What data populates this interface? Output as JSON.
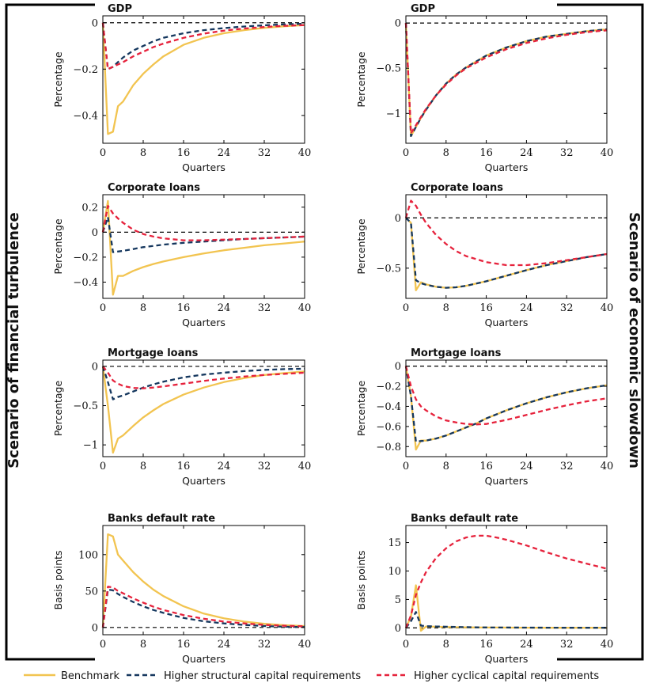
{
  "legend": {
    "items": [
      {
        "label": "Benchmark",
        "color": "#f2c450",
        "dash": "solid"
      },
      {
        "label": "Higher structural capital requirements",
        "color": "#15375e",
        "dash": "dashed"
      },
      {
        "label": "Higher cyclical capital requirements",
        "color": "#e6223c",
        "dash": "dashed"
      }
    ]
  },
  "scenarios": {
    "left": "Scenario of financial turbulence",
    "right": "Scenario of economic slowdown"
  },
  "chart_data": [
    {
      "type": "line",
      "column": "left",
      "row": 0,
      "title": "GDP",
      "xlabel": "Quarters",
      "ylabel": "Percentage",
      "xlim": [
        0,
        40
      ],
      "xticks": [
        0,
        8,
        16,
        24,
        32,
        40
      ],
      "ylim": [
        -0.52,
        0.03
      ],
      "yticks": [
        0,
        -0.2,
        -0.4
      ],
      "ytick_labels": [
        "0",
        "−0.2",
        "−0.4"
      ],
      "zero_line": true,
      "x": [
        0,
        1,
        2,
        3,
        4,
        6,
        8,
        10,
        12,
        16,
        20,
        24,
        28,
        32,
        36,
        40
      ],
      "series": [
        {
          "name": "Benchmark",
          "values": [
            0,
            -0.48,
            -0.47,
            -0.36,
            -0.34,
            -0.27,
            -0.22,
            -0.18,
            -0.145,
            -0.095,
            -0.065,
            -0.045,
            -0.032,
            -0.022,
            -0.015,
            -0.01
          ]
        },
        {
          "name": "Higher structural capital requirements",
          "values": [
            0,
            -0.2,
            -0.19,
            -0.17,
            -0.15,
            -0.12,
            -0.1,
            -0.08,
            -0.065,
            -0.045,
            -0.032,
            -0.023,
            -0.016,
            -0.011,
            -0.007,
            -0.004
          ]
        },
        {
          "name": "Higher cyclical capital requirements",
          "values": [
            0,
            -0.2,
            -0.19,
            -0.18,
            -0.17,
            -0.145,
            -0.125,
            -0.105,
            -0.09,
            -0.065,
            -0.047,
            -0.034,
            -0.025,
            -0.018,
            -0.013,
            -0.01
          ]
        }
      ]
    },
    {
      "type": "line",
      "column": "right",
      "row": 0,
      "title": "GDP",
      "xlabel": "Quarters",
      "ylabel": "Percentage",
      "xlim": [
        0,
        40
      ],
      "xticks": [
        0,
        8,
        16,
        24,
        32,
        40
      ],
      "ylim": [
        -1.33,
        0.08
      ],
      "yticks": [
        0,
        -0.5,
        -1
      ],
      "ytick_labels": [
        "0",
        "−0.5",
        "−1"
      ],
      "zero_line": true,
      "x": [
        0,
        1,
        2,
        3,
        4,
        6,
        8,
        10,
        12,
        16,
        20,
        24,
        28,
        32,
        36,
        40
      ],
      "series": [
        {
          "name": "Benchmark",
          "values": [
            0,
            -1.25,
            -1.15,
            -1.05,
            -0.96,
            -0.8,
            -0.67,
            -0.57,
            -0.49,
            -0.36,
            -0.27,
            -0.2,
            -0.15,
            -0.12,
            -0.09,
            -0.07
          ]
        },
        {
          "name": "Higher structural capital requirements",
          "values": [
            0,
            -1.25,
            -1.15,
            -1.05,
            -0.96,
            -0.8,
            -0.67,
            -0.57,
            -0.49,
            -0.36,
            -0.27,
            -0.2,
            -0.15,
            -0.12,
            -0.09,
            -0.07
          ]
        },
        {
          "name": "Higher cyclical capital requirements",
          "values": [
            0,
            -1.22,
            -1.13,
            -1.04,
            -0.95,
            -0.8,
            -0.68,
            -0.58,
            -0.5,
            -0.38,
            -0.29,
            -0.22,
            -0.17,
            -0.13,
            -0.1,
            -0.08
          ]
        }
      ]
    },
    {
      "type": "line",
      "column": "left",
      "row": 1,
      "title": "Corporate loans",
      "xlabel": "Quarters",
      "ylabel": "Percentage",
      "xlim": [
        0,
        40
      ],
      "xticks": [
        0,
        8,
        16,
        24,
        32,
        40
      ],
      "ylim": [
        -0.53,
        0.3
      ],
      "yticks": [
        0.2,
        0,
        -0.2,
        -0.4
      ],
      "ytick_labels": [
        "0.2",
        "0",
        "−0.2",
        "−0.4"
      ],
      "zero_line": true,
      "x": [
        0,
        1,
        2,
        3,
        4,
        6,
        8,
        10,
        12,
        16,
        20,
        24,
        28,
        32,
        36,
        40
      ],
      "series": [
        {
          "name": "Benchmark",
          "values": [
            0,
            0.25,
            -0.5,
            -0.35,
            -0.35,
            -0.31,
            -0.28,
            -0.255,
            -0.235,
            -0.2,
            -0.17,
            -0.145,
            -0.125,
            -0.105,
            -0.09,
            -0.075
          ]
        },
        {
          "name": "Higher structural capital requirements",
          "values": [
            0,
            0.12,
            -0.16,
            -0.155,
            -0.15,
            -0.135,
            -0.12,
            -0.11,
            -0.1,
            -0.085,
            -0.075,
            -0.065,
            -0.055,
            -0.048,
            -0.042,
            -0.036
          ]
        },
        {
          "name": "Higher cyclical capital requirements",
          "values": [
            0,
            0.21,
            0.15,
            0.11,
            0.075,
            0.02,
            -0.015,
            -0.035,
            -0.05,
            -0.065,
            -0.065,
            -0.06,
            -0.055,
            -0.048,
            -0.042,
            -0.035
          ]
        }
      ]
    },
    {
      "type": "line",
      "column": "right",
      "row": 1,
      "title": "Corporate loans",
      "xlabel": "Quarters",
      "ylabel": "Percentage",
      "xlim": [
        0,
        40
      ],
      "xticks": [
        0,
        8,
        16,
        24,
        32,
        40
      ],
      "ylim": [
        -0.8,
        0.23
      ],
      "yticks": [
        0,
        -0.5
      ],
      "ytick_labels": [
        "0",
        "−0.5"
      ],
      "zero_line": true,
      "x": [
        0,
        1,
        2,
        3,
        4,
        6,
        8,
        10,
        12,
        16,
        20,
        24,
        28,
        32,
        36,
        40
      ],
      "series": [
        {
          "name": "Benchmark",
          "values": [
            0,
            -0.05,
            -0.72,
            -0.64,
            -0.66,
            -0.685,
            -0.695,
            -0.69,
            -0.675,
            -0.63,
            -0.575,
            -0.52,
            -0.47,
            -0.43,
            -0.39,
            -0.36
          ]
        },
        {
          "name": "Higher structural capital requirements",
          "values": [
            0,
            -0.05,
            -0.62,
            -0.65,
            -0.665,
            -0.685,
            -0.695,
            -0.69,
            -0.675,
            -0.63,
            -0.575,
            -0.52,
            -0.47,
            -0.43,
            -0.39,
            -0.36
          ]
        },
        {
          "name": "Higher cyclical capital requirements",
          "values": [
            0,
            0.17,
            0.12,
            0.03,
            -0.05,
            -0.17,
            -0.26,
            -0.33,
            -0.38,
            -0.44,
            -0.47,
            -0.47,
            -0.45,
            -0.42,
            -0.39,
            -0.36
          ]
        }
      ]
    },
    {
      "type": "line",
      "column": "left",
      "row": 2,
      "title": "Mortgage loans",
      "xlabel": "Quarters",
      "ylabel": "Percentage",
      "xlim": [
        0,
        40
      ],
      "xticks": [
        0,
        8,
        16,
        24,
        32,
        40
      ],
      "ylim": [
        -1.15,
        0.08
      ],
      "yticks": [
        0,
        -0.5,
        -1
      ],
      "ytick_labels": [
        "0",
        "−0.5",
        "−1"
      ],
      "zero_line": true,
      "x": [
        0,
        1,
        2,
        3,
        4,
        6,
        8,
        10,
        12,
        16,
        20,
        24,
        28,
        32,
        36,
        40
      ],
      "series": [
        {
          "name": "Benchmark",
          "values": [
            0,
            -0.5,
            -1.1,
            -0.92,
            -0.88,
            -0.76,
            -0.65,
            -0.56,
            -0.48,
            -0.36,
            -0.27,
            -0.2,
            -0.15,
            -0.11,
            -0.085,
            -0.065
          ]
        },
        {
          "name": "Higher structural capital requirements",
          "values": [
            0,
            -0.2,
            -0.42,
            -0.39,
            -0.37,
            -0.32,
            -0.27,
            -0.23,
            -0.195,
            -0.14,
            -0.105,
            -0.08,
            -0.06,
            -0.045,
            -0.035,
            -0.03
          ]
        },
        {
          "name": "Higher cyclical capital requirements",
          "values": [
            0,
            -0.08,
            -0.18,
            -0.22,
            -0.25,
            -0.275,
            -0.28,
            -0.27,
            -0.255,
            -0.22,
            -0.185,
            -0.155,
            -0.13,
            -0.11,
            -0.095,
            -0.08
          ]
        }
      ]
    },
    {
      "type": "line",
      "column": "right",
      "row": 2,
      "title": "Mortgage loans",
      "xlabel": "Quarters",
      "ylabel": "Percentage",
      "xlim": [
        0,
        40
      ],
      "xticks": [
        0,
        8,
        16,
        24,
        32,
        40
      ],
      "ylim": [
        -0.9,
        0.06
      ],
      "yticks": [
        0,
        -0.2,
        -0.4,
        -0.6,
        -0.8
      ],
      "ytick_labels": [
        "0",
        "−0.2",
        "−0.4",
        "−0.6",
        "−0.8"
      ],
      "zero_line": true,
      "x": [
        0,
        1,
        2,
        3,
        4,
        6,
        8,
        10,
        12,
        14,
        16,
        20,
        24,
        28,
        32,
        36,
        40
      ],
      "series": [
        {
          "name": "Benchmark",
          "values": [
            0,
            -0.3,
            -0.83,
            -0.74,
            -0.74,
            -0.72,
            -0.69,
            -0.65,
            -0.61,
            -0.57,
            -0.52,
            -0.44,
            -0.37,
            -0.31,
            -0.26,
            -0.22,
            -0.19
          ]
        },
        {
          "name": "Higher structural capital requirements",
          "values": [
            0,
            -0.3,
            -0.75,
            -0.745,
            -0.74,
            -0.72,
            -0.69,
            -0.65,
            -0.61,
            -0.57,
            -0.52,
            -0.44,
            -0.37,
            -0.31,
            -0.26,
            -0.22,
            -0.19
          ]
        },
        {
          "name": "Higher cyclical capital requirements",
          "values": [
            0,
            -0.2,
            -0.33,
            -0.4,
            -0.44,
            -0.5,
            -0.54,
            -0.56,
            -0.575,
            -0.58,
            -0.575,
            -0.535,
            -0.485,
            -0.435,
            -0.39,
            -0.35,
            -0.32
          ]
        }
      ]
    },
    {
      "type": "line",
      "column": "left",
      "row": 3,
      "title": "Banks default rate",
      "xlabel": "Quarters",
      "ylabel": "Basis points",
      "xlim": [
        0,
        40
      ],
      "xticks": [
        0,
        8,
        16,
        24,
        32,
        40
      ],
      "ylim": [
        -10,
        140
      ],
      "yticks": [
        0,
        50,
        100
      ],
      "ytick_labels": [
        "0",
        "50",
        "100"
      ],
      "zero_line": true,
      "x": [
        0,
        1,
        2,
        3,
        4,
        6,
        8,
        10,
        12,
        16,
        20,
        24,
        28,
        32,
        36,
        40
      ],
      "series": [
        {
          "name": "Benchmark",
          "values": [
            0,
            128,
            125,
            100,
            92,
            76,
            63,
            52,
            43,
            29,
            19,
            12.5,
            8,
            5,
            3,
            2
          ]
        },
        {
          "name": "Higher structural capital requirements",
          "values": [
            0,
            52,
            51,
            46,
            42,
            35,
            29,
            24,
            20,
            13,
            8.5,
            5.5,
            3.5,
            2,
            1,
            0.5
          ]
        },
        {
          "name": "Higher cyclical capital requirements",
          "values": [
            0,
            56,
            55,
            50,
            47,
            40,
            34,
            28.5,
            24,
            17,
            12,
            8,
            5.5,
            3.5,
            2.3,
            1.5
          ]
        }
      ]
    },
    {
      "type": "line",
      "column": "right",
      "row": 3,
      "title": "Banks default rate",
      "xlabel": "Quarters",
      "ylabel": "Basis points",
      "xlim": [
        0,
        40
      ],
      "xticks": [
        0,
        8,
        16,
        24,
        32,
        40
      ],
      "ylim": [
        -1.2,
        18
      ],
      "yticks": [
        0,
        5,
        10,
        15
      ],
      "ytick_labels": [
        "0",
        "5",
        "10",
        "15"
      ],
      "zero_line": true,
      "x": [
        0,
        1,
        2,
        3,
        4,
        6,
        8,
        10,
        12,
        14,
        16,
        18,
        20,
        24,
        28,
        32,
        36,
        40
      ],
      "series": [
        {
          "name": "Benchmark",
          "values": [
            0,
            2,
            7.5,
            -0.5,
            0.25,
            0.2,
            0.15,
            0.12,
            0.1,
            0.08,
            0.07,
            0.06,
            0.05,
            0.04,
            0.03,
            0.02,
            0.02,
            0.01
          ]
        },
        {
          "name": "Higher structural capital requirements",
          "values": [
            0,
            1.2,
            2.8,
            0.4,
            0.3,
            0.25,
            0.2,
            0.16,
            0.13,
            0.1,
            0.08,
            0.07,
            0.06,
            0.05,
            0.04,
            0.03,
            0.02,
            0.02
          ]
        },
        {
          "name": "Higher cyclical capital requirements",
          "values": [
            0,
            2.2,
            5.8,
            8,
            9.8,
            12.3,
            14,
            15.2,
            15.9,
            16.2,
            16.2,
            15.9,
            15.5,
            14.5,
            13.3,
            12.2,
            11.3,
            10.4
          ]
        }
      ]
    }
  ]
}
